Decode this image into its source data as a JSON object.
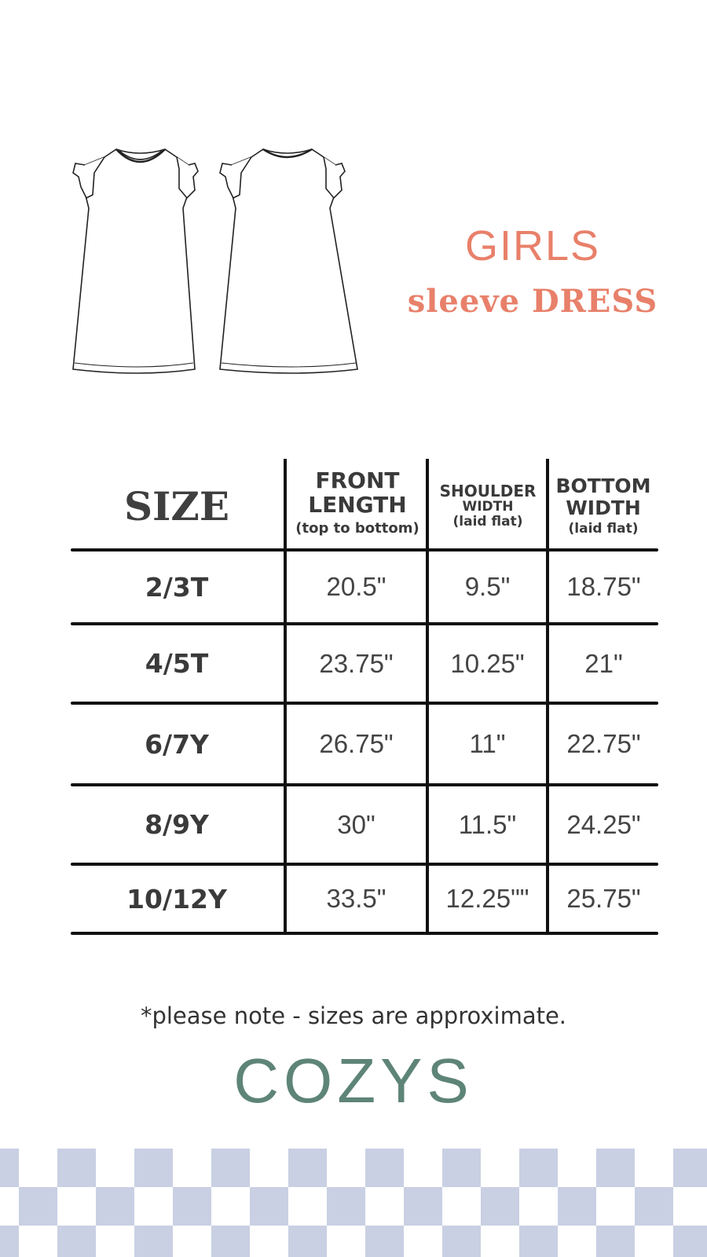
{
  "title": {
    "line1": "GIRLS",
    "line2": "sleeve DRESS"
  },
  "colors": {
    "accent": "#e8806a",
    "brand": "#5e8478",
    "checker": "#c9d0e3",
    "text": "#3a3a3a"
  },
  "table": {
    "headers": {
      "size": "SIZE",
      "front_length": {
        "line1": "FRONT",
        "line2": "LENGTH",
        "sub": "(top to bottom)"
      },
      "shoulder_width": {
        "line1": "SHOULDER",
        "line2": "WIDTH",
        "sub": "(laid flat)"
      },
      "bottom_width": {
        "line1": "BOTTOM",
        "line2": "WIDTH",
        "sub": "(laid flat)"
      }
    },
    "rows": [
      {
        "size": "2/3T",
        "front_length": "20.5\"",
        "shoulder_width": "9.5\"",
        "bottom_width": "18.75\""
      },
      {
        "size": "4/5T",
        "front_length": "23.75\"",
        "shoulder_width": "10.25\"",
        "bottom_width": "21\""
      },
      {
        "size": "6/7Y",
        "front_length": "26.75\"",
        "shoulder_width": "11\"",
        "bottom_width": "22.75\""
      },
      {
        "size": "8/9Y",
        "front_length": "30\"",
        "shoulder_width": "11.5\"",
        "bottom_width": "24.25\""
      },
      {
        "size": "10/12Y",
        "front_length": "33.5\"",
        "shoulder_width": "12.25\"\"",
        "bottom_width": "25.75\""
      }
    ]
  },
  "note": "*please note - sizes are approximate.",
  "brand": "COZYS"
}
